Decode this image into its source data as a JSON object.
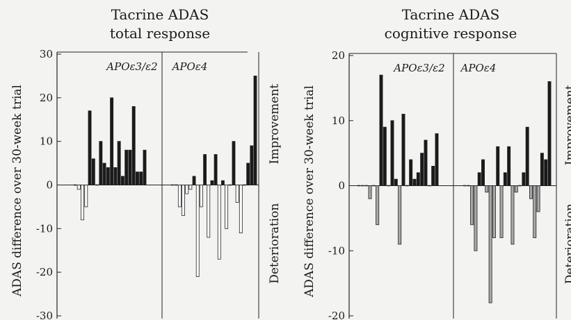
{
  "chart_data": [
    {
      "type": "bar",
      "title": [
        "Tacrine ADAS",
        "total response"
      ],
      "ylabel": "ADAS difference over 30-week trial",
      "side_labels": {
        "positive": "Improvement",
        "negative": "Deterioration"
      },
      "ylim": [
        -30,
        30
      ],
      "yticks": [
        -30,
        -20,
        -10,
        0,
        10,
        20,
        30
      ],
      "groups": [
        {
          "name": "APOε3/ε2",
          "values": [
            0,
            -1,
            -8,
            -5,
            17,
            6,
            0,
            10,
            5,
            4,
            20,
            4,
            10,
            2,
            8,
            8,
            18,
            3,
            3,
            8
          ]
        },
        {
          "name": "APOε4",
          "values": [
            0,
            0,
            -5,
            -7,
            -2,
            -1,
            2,
            -21,
            -5,
            7,
            -12,
            1,
            7,
            -17,
            1,
            -10,
            0,
            10,
            -4,
            -11,
            0,
            5,
            9,
            25
          ]
        }
      ],
      "colors": {
        "positive": "#1a1a1a",
        "negative": "#ffffff"
      }
    },
    {
      "type": "bar",
      "title": [
        "Tacrine ADAS",
        "cognitive response"
      ],
      "ylabel": "ADAS difference over 30-week trial",
      "side_labels": {
        "positive": "Improvement",
        "negative": "Deterioration"
      },
      "ylim": [
        -20,
        20
      ],
      "yticks": [
        -20,
        -10,
        0,
        10,
        20
      ],
      "groups": [
        {
          "name": "APOε3/ε2",
          "values": [
            0,
            0,
            0,
            -2,
            0,
            -6,
            17,
            9,
            0,
            10,
            1,
            -9,
            11,
            0,
            4,
            1,
            2,
            5,
            7,
            0,
            3,
            8
          ]
        },
        {
          "name": "APOε4",
          "values": [
            0,
            0,
            -6,
            -10,
            2,
            4,
            -1,
            -18,
            -8,
            6,
            -8,
            2,
            6,
            -9,
            -1,
            0,
            2,
            9,
            -2,
            -8,
            -4,
            5,
            4,
            16
          ]
        }
      ],
      "colors": {
        "positive": "#1a1a1a",
        "negative": "#a8a8a8"
      }
    }
  ]
}
